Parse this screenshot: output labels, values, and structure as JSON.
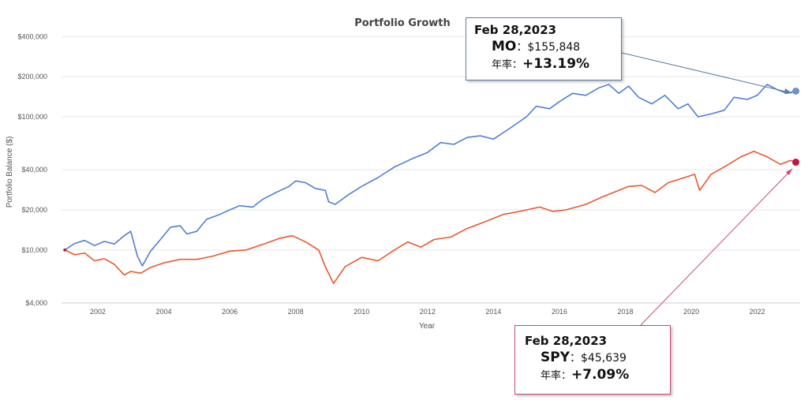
{
  "chart_data": {
    "type": "line",
    "title": "Portfolio Growth",
    "xlabel": "Year",
    "ylabel": "Portfolio Balance ($)",
    "yscale": "log",
    "ylim": [
      4000,
      500000
    ],
    "xlim": [
      2000.9,
      2023.3
    ],
    "x_ticks": [
      "2002",
      "2004",
      "2006",
      "2008",
      "2010",
      "2012",
      "2014",
      "2016",
      "2018",
      "2020",
      "2022"
    ],
    "y_ticks": [
      {
        "value": 4000,
        "label": "$4,000"
      },
      {
        "value": 10000,
        "label": "$10,000"
      },
      {
        "value": 20000,
        "label": "$20,000"
      },
      {
        "value": 40000,
        "label": "$40,000"
      },
      {
        "value": 100000,
        "label": "$100,000"
      },
      {
        "value": 200000,
        "label": "$200,000"
      },
      {
        "value": 400000,
        "label": "$400,000"
      }
    ],
    "grid": true,
    "series": [
      {
        "name": "MO",
        "color": "#4f7fd3",
        "points": [
          [
            2001.0,
            10000
          ],
          [
            2001.3,
            11200
          ],
          [
            2001.6,
            11800
          ],
          [
            2001.9,
            10800
          ],
          [
            2002.2,
            11600
          ],
          [
            2002.5,
            11100
          ],
          [
            2002.8,
            12800
          ],
          [
            2003.0,
            13800
          ],
          [
            2003.2,
            9000
          ],
          [
            2003.35,
            7600
          ],
          [
            2003.6,
            9800
          ],
          [
            2003.9,
            12000
          ],
          [
            2004.2,
            14800
          ],
          [
            2004.5,
            15200
          ],
          [
            2004.7,
            13200
          ],
          [
            2005.0,
            13800
          ],
          [
            2005.3,
            17000
          ],
          [
            2005.7,
            18500
          ],
          [
            2006.0,
            20000
          ],
          [
            2006.3,
            21500
          ],
          [
            2006.7,
            21000
          ],
          [
            2007.0,
            24000
          ],
          [
            2007.4,
            27000
          ],
          [
            2007.8,
            30000
          ],
          [
            2008.0,
            33000
          ],
          [
            2008.3,
            32000
          ],
          [
            2008.6,
            29000
          ],
          [
            2008.9,
            28000
          ],
          [
            2009.0,
            23000
          ],
          [
            2009.2,
            22000
          ],
          [
            2009.6,
            26000
          ],
          [
            2010.0,
            30000
          ],
          [
            2010.5,
            35000
          ],
          [
            2011.0,
            42000
          ],
          [
            2011.5,
            48000
          ],
          [
            2012.0,
            54000
          ],
          [
            2012.4,
            64000
          ],
          [
            2012.8,
            62000
          ],
          [
            2013.2,
            70000
          ],
          [
            2013.6,
            72000
          ],
          [
            2014.0,
            68000
          ],
          [
            2014.5,
            82000
          ],
          [
            2015.0,
            100000
          ],
          [
            2015.3,
            120000
          ],
          [
            2015.7,
            115000
          ],
          [
            2016.0,
            130000
          ],
          [
            2016.4,
            150000
          ],
          [
            2016.8,
            145000
          ],
          [
            2017.2,
            165000
          ],
          [
            2017.5,
            175000
          ],
          [
            2017.8,
            150000
          ],
          [
            2018.1,
            170000
          ],
          [
            2018.4,
            140000
          ],
          [
            2018.8,
            125000
          ],
          [
            2019.2,
            145000
          ],
          [
            2019.6,
            115000
          ],
          [
            2019.9,
            125000
          ],
          [
            2020.2,
            100000
          ],
          [
            2020.6,
            105000
          ],
          [
            2021.0,
            112000
          ],
          [
            2021.3,
            140000
          ],
          [
            2021.7,
            135000
          ],
          [
            2022.0,
            145000
          ],
          [
            2022.3,
            175000
          ],
          [
            2022.6,
            160000
          ],
          [
            2022.9,
            150000
          ],
          [
            2023.17,
            155848
          ]
        ]
      },
      {
        "name": "SPY",
        "color": "#e8582e",
        "points": [
          [
            2001.0,
            10000
          ],
          [
            2001.3,
            9200
          ],
          [
            2001.6,
            9500
          ],
          [
            2001.9,
            8300
          ],
          [
            2002.2,
            8600
          ],
          [
            2002.5,
            7800
          ],
          [
            2002.8,
            6500
          ],
          [
            2003.0,
            6900
          ],
          [
            2003.3,
            6700
          ],
          [
            2003.6,
            7400
          ],
          [
            2004.0,
            8000
          ],
          [
            2004.5,
            8500
          ],
          [
            2005.0,
            8500
          ],
          [
            2005.5,
            9000
          ],
          [
            2006.0,
            9800
          ],
          [
            2006.5,
            10000
          ],
          [
            2007.0,
            11000
          ],
          [
            2007.5,
            12200
          ],
          [
            2007.9,
            12800
          ],
          [
            2008.3,
            11500
          ],
          [
            2008.7,
            10000
          ],
          [
            2008.9,
            7500
          ],
          [
            2009.15,
            5600
          ],
          [
            2009.5,
            7500
          ],
          [
            2010.0,
            8800
          ],
          [
            2010.5,
            8300
          ],
          [
            2011.0,
            10000
          ],
          [
            2011.4,
            11500
          ],
          [
            2011.8,
            10500
          ],
          [
            2012.2,
            12000
          ],
          [
            2012.7,
            12500
          ],
          [
            2013.2,
            14500
          ],
          [
            2013.8,
            16500
          ],
          [
            2014.3,
            18500
          ],
          [
            2014.8,
            19500
          ],
          [
            2015.4,
            21000
          ],
          [
            2015.8,
            19500
          ],
          [
            2016.2,
            20000
          ],
          [
            2016.8,
            22000
          ],
          [
            2017.3,
            25000
          ],
          [
            2017.8,
            28000
          ],
          [
            2018.1,
            30000
          ],
          [
            2018.5,
            30500
          ],
          [
            2018.9,
            27000
          ],
          [
            2019.3,
            32000
          ],
          [
            2019.8,
            35000
          ],
          [
            2020.1,
            37000
          ],
          [
            2020.25,
            28000
          ],
          [
            2020.6,
            37000
          ],
          [
            2021.0,
            42000
          ],
          [
            2021.5,
            50000
          ],
          [
            2021.9,
            55000
          ],
          [
            2022.3,
            50000
          ],
          [
            2022.7,
            44000
          ],
          [
            2023.0,
            47000
          ],
          [
            2023.17,
            45639
          ]
        ]
      }
    ]
  },
  "callouts": {
    "mo": {
      "date": "Feb 28,2023",
      "ticker": "MO",
      "value": "$155,848",
      "cagr_label": "年率：",
      "cagr": "+13.19%",
      "separator": "：",
      "border_color": "#5b7fa6"
    },
    "spy": {
      "date": "Feb 28,2023",
      "ticker": "SPY",
      "value": "$45,639",
      "cagr_label": "年率：",
      "cagr": "+7.09%",
      "separator": "：",
      "border_color": "#c8477a"
    }
  }
}
